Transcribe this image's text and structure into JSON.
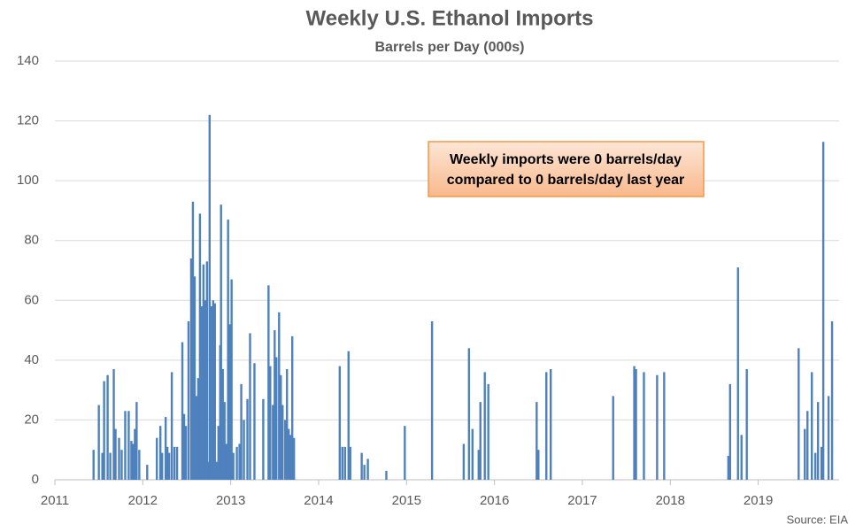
{
  "chart_data": {
    "type": "bar",
    "title": "Weekly U.S. Ethanol Imports",
    "subtitle": "Barrels per Day (000s)",
    "annotations": [
      "Weekly imports were 0 barrels/day",
      "compared to 0 barrels/day last year"
    ],
    "source": "Source: EIA",
    "color": "#4f81bd",
    "grid": true,
    "xlim": [
      2011,
      2019.92
    ],
    "xticks": [
      2011,
      2012,
      2013,
      2014,
      2015,
      2016,
      2017,
      2018,
      2019
    ],
    "ylim": [
      0,
      140
    ],
    "yticks": [
      0,
      20,
      40,
      60,
      80,
      100,
      120,
      140
    ],
    "x": [
      2011.44,
      2011.5,
      2011.54,
      2011.56,
      2011.6,
      2011.63,
      2011.67,
      2011.69,
      2011.73,
      2011.76,
      2011.8,
      2011.84,
      2011.87,
      2011.89,
      2011.91,
      2011.93,
      2011.96,
      2012.05,
      2012.16,
      2012.2,
      2012.22,
      2012.26,
      2012.28,
      2012.3,
      2012.33,
      2012.36,
      2012.39,
      2012.45,
      2012.47,
      2012.49,
      2012.52,
      2012.55,
      2012.57,
      2012.59,
      2012.61,
      2012.63,
      2012.65,
      2012.67,
      2012.69,
      2012.71,
      2012.73,
      2012.75,
      2012.76,
      2012.78,
      2012.8,
      2012.82,
      2012.84,
      2012.86,
      2012.88,
      2012.89,
      2012.91,
      2012.93,
      2012.95,
      2012.97,
      2012.99,
      2013.01,
      2013.03,
      2013.07,
      2013.1,
      2013.12,
      2013.15,
      2013.19,
      2013.22,
      2013.27,
      2013.37,
      2013.43,
      2013.45,
      2013.48,
      2013.5,
      2013.52,
      2013.55,
      2013.57,
      2013.59,
      2013.62,
      2013.64,
      2013.66,
      2013.68,
      2013.7,
      2013.72,
      2014.24,
      2014.27,
      2014.3,
      2014.34,
      2014.36,
      2014.49,
      2014.52,
      2014.56,
      2014.77,
      2014.98,
      2015.29,
      2015.65,
      2015.71,
      2015.75,
      2015.82,
      2015.84,
      2015.89,
      2015.93,
      2016.48,
      2016.5,
      2016.59,
      2016.64,
      2017.35,
      2017.59,
      2017.61,
      2017.7,
      2017.85,
      2017.93,
      2018.66,
      2018.68,
      2018.77,
      2018.81,
      2018.87,
      2019.46,
      2019.53,
      2019.56,
      2019.61,
      2019.65,
      2019.68,
      2019.72,
      2019.74,
      2019.8,
      2019.84
    ],
    "values": [
      10,
      25,
      9,
      33,
      35,
      9,
      37,
      17,
      14,
      10,
      23,
      23,
      13,
      12,
      17,
      26,
      10,
      5,
      14,
      18,
      9,
      21,
      11,
      9,
      36,
      11,
      11,
      46,
      22,
      18,
      53,
      74,
      93,
      68,
      28,
      34,
      89,
      58,
      72,
      60,
      73,
      6,
      122,
      58,
      60,
      59,
      6,
      18,
      45,
      92,
      37,
      26,
      12,
      87,
      52,
      67,
      9,
      11,
      12,
      32,
      20,
      27,
      49,
      39,
      27,
      65,
      38,
      25,
      50,
      41,
      56,
      35,
      25,
      20,
      37,
      17,
      15,
      48,
      14,
      38,
      11,
      11,
      43,
      11,
      9,
      5,
      7,
      3,
      18,
      53,
      12,
      44,
      17,
      10,
      26,
      36,
      32,
      26,
      10,
      36,
      37,
      28,
      38,
      37,
      36,
      35,
      36,
      8,
      32,
      71,
      15,
      37,
      44,
      17,
      23,
      36,
      9,
      26,
      11,
      113,
      28,
      53
    ]
  }
}
